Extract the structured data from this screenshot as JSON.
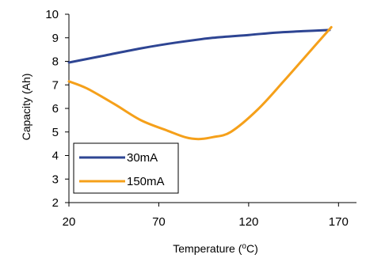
{
  "chart_data": {
    "type": "line",
    "xlabel": "Temperature (",
    "xlabel_sup": "o",
    "xlabel_unit": "C)",
    "ylabel": "Capacity (Ah)",
    "xlim": [
      20,
      180
    ],
    "ylim": [
      2,
      10
    ],
    "xticks": [
      20,
      70,
      120,
      170
    ],
    "yticks": [
      2,
      3,
      4,
      5,
      6,
      7,
      8,
      9,
      10
    ],
    "grid": false,
    "legend_position": "bottom-left",
    "series": [
      {
        "name": "30mA",
        "color": "#2e4593",
        "points": [
          [
            20,
            7.95
          ],
          [
            40,
            8.25
          ],
          [
            60,
            8.55
          ],
          [
            80,
            8.8
          ],
          [
            100,
            9.0
          ],
          [
            120,
            9.12
          ],
          [
            135,
            9.22
          ],
          [
            150,
            9.28
          ],
          [
            165,
            9.33
          ]
        ]
      },
      {
        "name": "150mA",
        "color": "#f5a01a",
        "points": [
          [
            20,
            7.15
          ],
          [
            30,
            6.85
          ],
          [
            45,
            6.2
          ],
          [
            60,
            5.5
          ],
          [
            75,
            5.05
          ],
          [
            85,
            4.77
          ],
          [
            92,
            4.7
          ],
          [
            100,
            4.78
          ],
          [
            110,
            5.0
          ],
          [
            125,
            5.95
          ],
          [
            140,
            7.2
          ],
          [
            155,
            8.5
          ],
          [
            166,
            9.45
          ]
        ]
      }
    ]
  }
}
